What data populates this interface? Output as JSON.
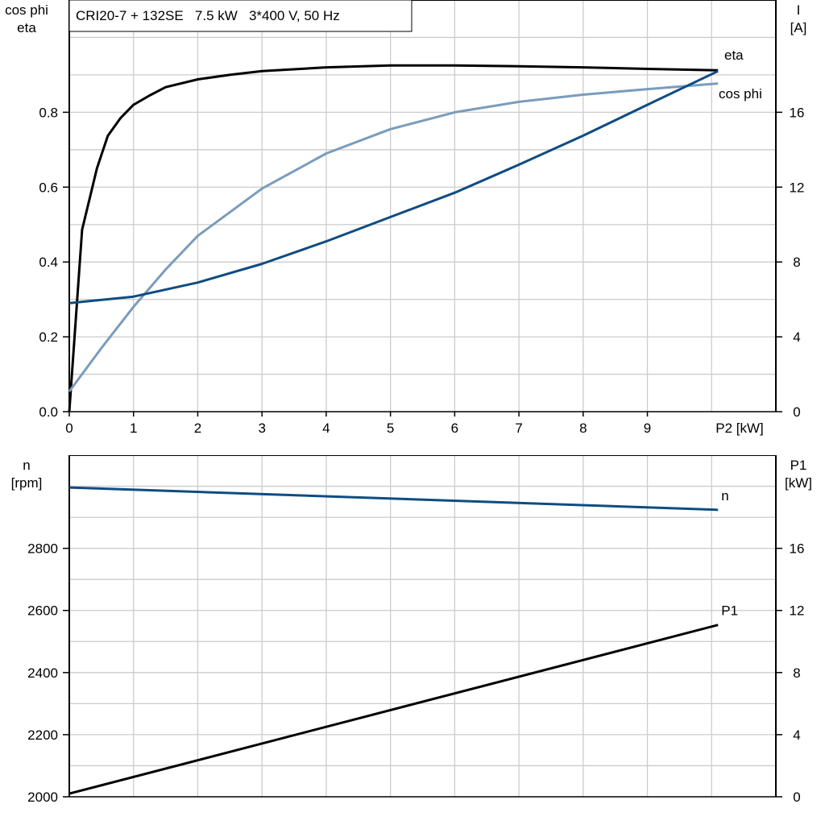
{
  "chart_data": [
    {
      "type": "line",
      "title": "CRI20-7 + 132SE   7.5 kW   3*400 V, 50 Hz",
      "xlabel": "P2 [kW]",
      "ylabel_left": [
        "cos phi",
        "eta"
      ],
      "ylabel_right": [
        "I",
        "[A]"
      ],
      "xlim": [
        0,
        11
      ],
      "ylim_left": [
        0,
        1.1
      ],
      "ylim_right": [
        0,
        22
      ],
      "x_ticks": [
        "0",
        "1",
        "2",
        "3",
        "4",
        "5",
        "6",
        "7",
        "8",
        "9"
      ],
      "y_left_ticks": [
        "0.0",
        "0.2",
        "0.4",
        "0.6",
        "0.8"
      ],
      "y_right_ticks": [
        "0",
        "4",
        "8",
        "12",
        "16"
      ],
      "grid": true,
      "colors": {
        "eta": "#000000",
        "cos_phi": "#7a9cbd",
        "I": "#0f4c81"
      },
      "series": [
        {
          "name": "eta",
          "axis": "left",
          "color": "#000000",
          "x": [
            0,
            0.2,
            0.43,
            0.6,
            0.8,
            1.0,
            1.25,
            1.5,
            2,
            2.5,
            3,
            4,
            5,
            6,
            7,
            8,
            9,
            10.1
          ],
          "y": [
            0,
            0.486,
            0.65,
            0.737,
            0.785,
            0.82,
            0.845,
            0.867,
            0.888,
            0.9,
            0.91,
            0.92,
            0.925,
            0.925,
            0.923,
            0.92,
            0.916,
            0.912
          ]
        },
        {
          "name": "cos phi",
          "axis": "left",
          "color": "#7a9cbd",
          "x": [
            0,
            0.5,
            1,
            1.5,
            2,
            3,
            4,
            5,
            6,
            7,
            8,
            9,
            10.1
          ],
          "y": [
            0.054,
            0.17,
            0.28,
            0.38,
            0.47,
            0.596,
            0.69,
            0.755,
            0.8,
            0.828,
            0.847,
            0.862,
            0.877
          ]
        },
        {
          "name": "I",
          "axis": "right",
          "color": "#0f4c81",
          "x": [
            0,
            1,
            2,
            3,
            4,
            5,
            6,
            7,
            8,
            9,
            10.1
          ],
          "y": [
            5.8,
            6.15,
            6.9,
            7.9,
            9.1,
            10.4,
            11.7,
            13.2,
            14.75,
            16.4,
            18.2
          ]
        }
      ]
    },
    {
      "type": "line",
      "xlim": [
        0,
        11
      ],
      "ylabel_left": [
        "n",
        "[rpm]"
      ],
      "ylabel_right": [
        "P1",
        "[kW]"
      ],
      "ylim_left": [
        2000,
        3100
      ],
      "ylim_right": [
        0,
        22
      ],
      "y_left_ticks": [
        "2000",
        "2200",
        "2400",
        "2600",
        "2800"
      ],
      "y_right_ticks": [
        "0",
        "4",
        "8",
        "12",
        "16"
      ],
      "grid": true,
      "series": [
        {
          "name": "n",
          "axis": "left",
          "color": "#0f4c81",
          "x": [
            0,
            10.1
          ],
          "y": [
            2996,
            2924
          ]
        },
        {
          "name": "P1",
          "axis": "right",
          "color": "#000000",
          "x": [
            0,
            10.1
          ],
          "y": [
            0.2,
            11.07
          ]
        }
      ]
    }
  ]
}
